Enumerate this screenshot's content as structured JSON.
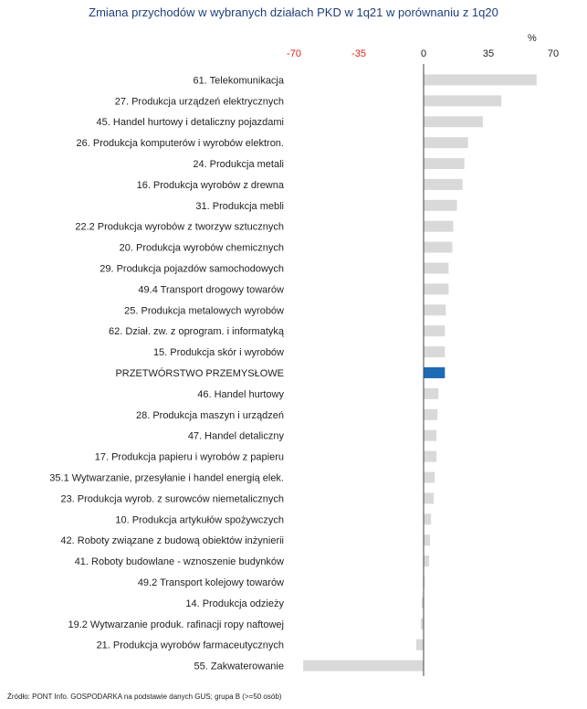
{
  "chart_data": {
    "type": "bar",
    "orientation": "horizontal",
    "title": "Zmiana przychodów w wybranych działach PKD w 1q21 w porównaniu z 1q20",
    "unit": "%",
    "xlim": [
      -70,
      70
    ],
    "xticks": [
      -70,
      -35,
      0,
      35,
      70
    ],
    "negative_tick_color": "#e0201a",
    "positive_tick_color": "#222222",
    "bar_color": "#d9d9d9",
    "highlight_color": "#1f6ab7",
    "highlight_category": "PRZETWÓRSTWO PRZEMYSŁOWE",
    "categories": [
      "61. Telekomunikacja",
      "27. Produkcja urządzeń elektrycznych",
      "45. Handel hurtowy i detaliczny pojazdami",
      "26. Produkcja komputerów i wyrobów elektron.",
      "24. Produkcja metali",
      "16. Produkcja wyrobów z drewna",
      "31. Produkcja mebli",
      "22.2 Produkcja wyrobów z tworzyw sztucznych",
      "20. Produkcja wyrobów chemicznych",
      "29. Produkcja pojazdów samochodowych",
      "49.4 Transport drogowy towarów",
      "25. Produkcja metalowych wyrobów",
      "62. Dział. zw. z oprogram. i informatyką",
      "15. Produkcja skór i wyrobów",
      "PRZETWÓRSTWO PRZEMYSŁOWE",
      "46. Handel hurtowy",
      "28. Produkcja maszyn i urządzeń",
      "47. Handel detaliczny",
      "17. Produkcja papieru i wyrobów z papieru",
      "35.1 Wytwarzanie, przesyłanie i handel energią elek.",
      "23. Produkcja wyrob. z surowców niemetalicznych",
      "10. Produkcja artykułów spożywczych",
      "42. Roboty związane z budową obiektów inżynierii",
      "41. Roboty budowlane - wznoszenie budynków",
      "49.2 Transport kolejowy towarów",
      "14. Produkcja odzieży",
      "19.2 Wytwarzanie produk. rafinacji ropy naftowej",
      "21. Produkcja wyrobów farmaceutycznych",
      "55. Zakwaterowanie"
    ],
    "values": [
      61,
      42,
      32,
      24,
      22,
      21,
      18,
      16,
      15.5,
      13.5,
      13.5,
      12,
      11.5,
      11.5,
      11.5,
      8,
      7.5,
      7,
      7,
      6,
      5.5,
      4,
      3.5,
      3,
      0.5,
      -1,
      -1.5,
      -4,
      -65
    ]
  },
  "source": "Źródło: PONT Info. GOSPODARKA na podstawie danych GUS; grupa B (>=50 osób)"
}
